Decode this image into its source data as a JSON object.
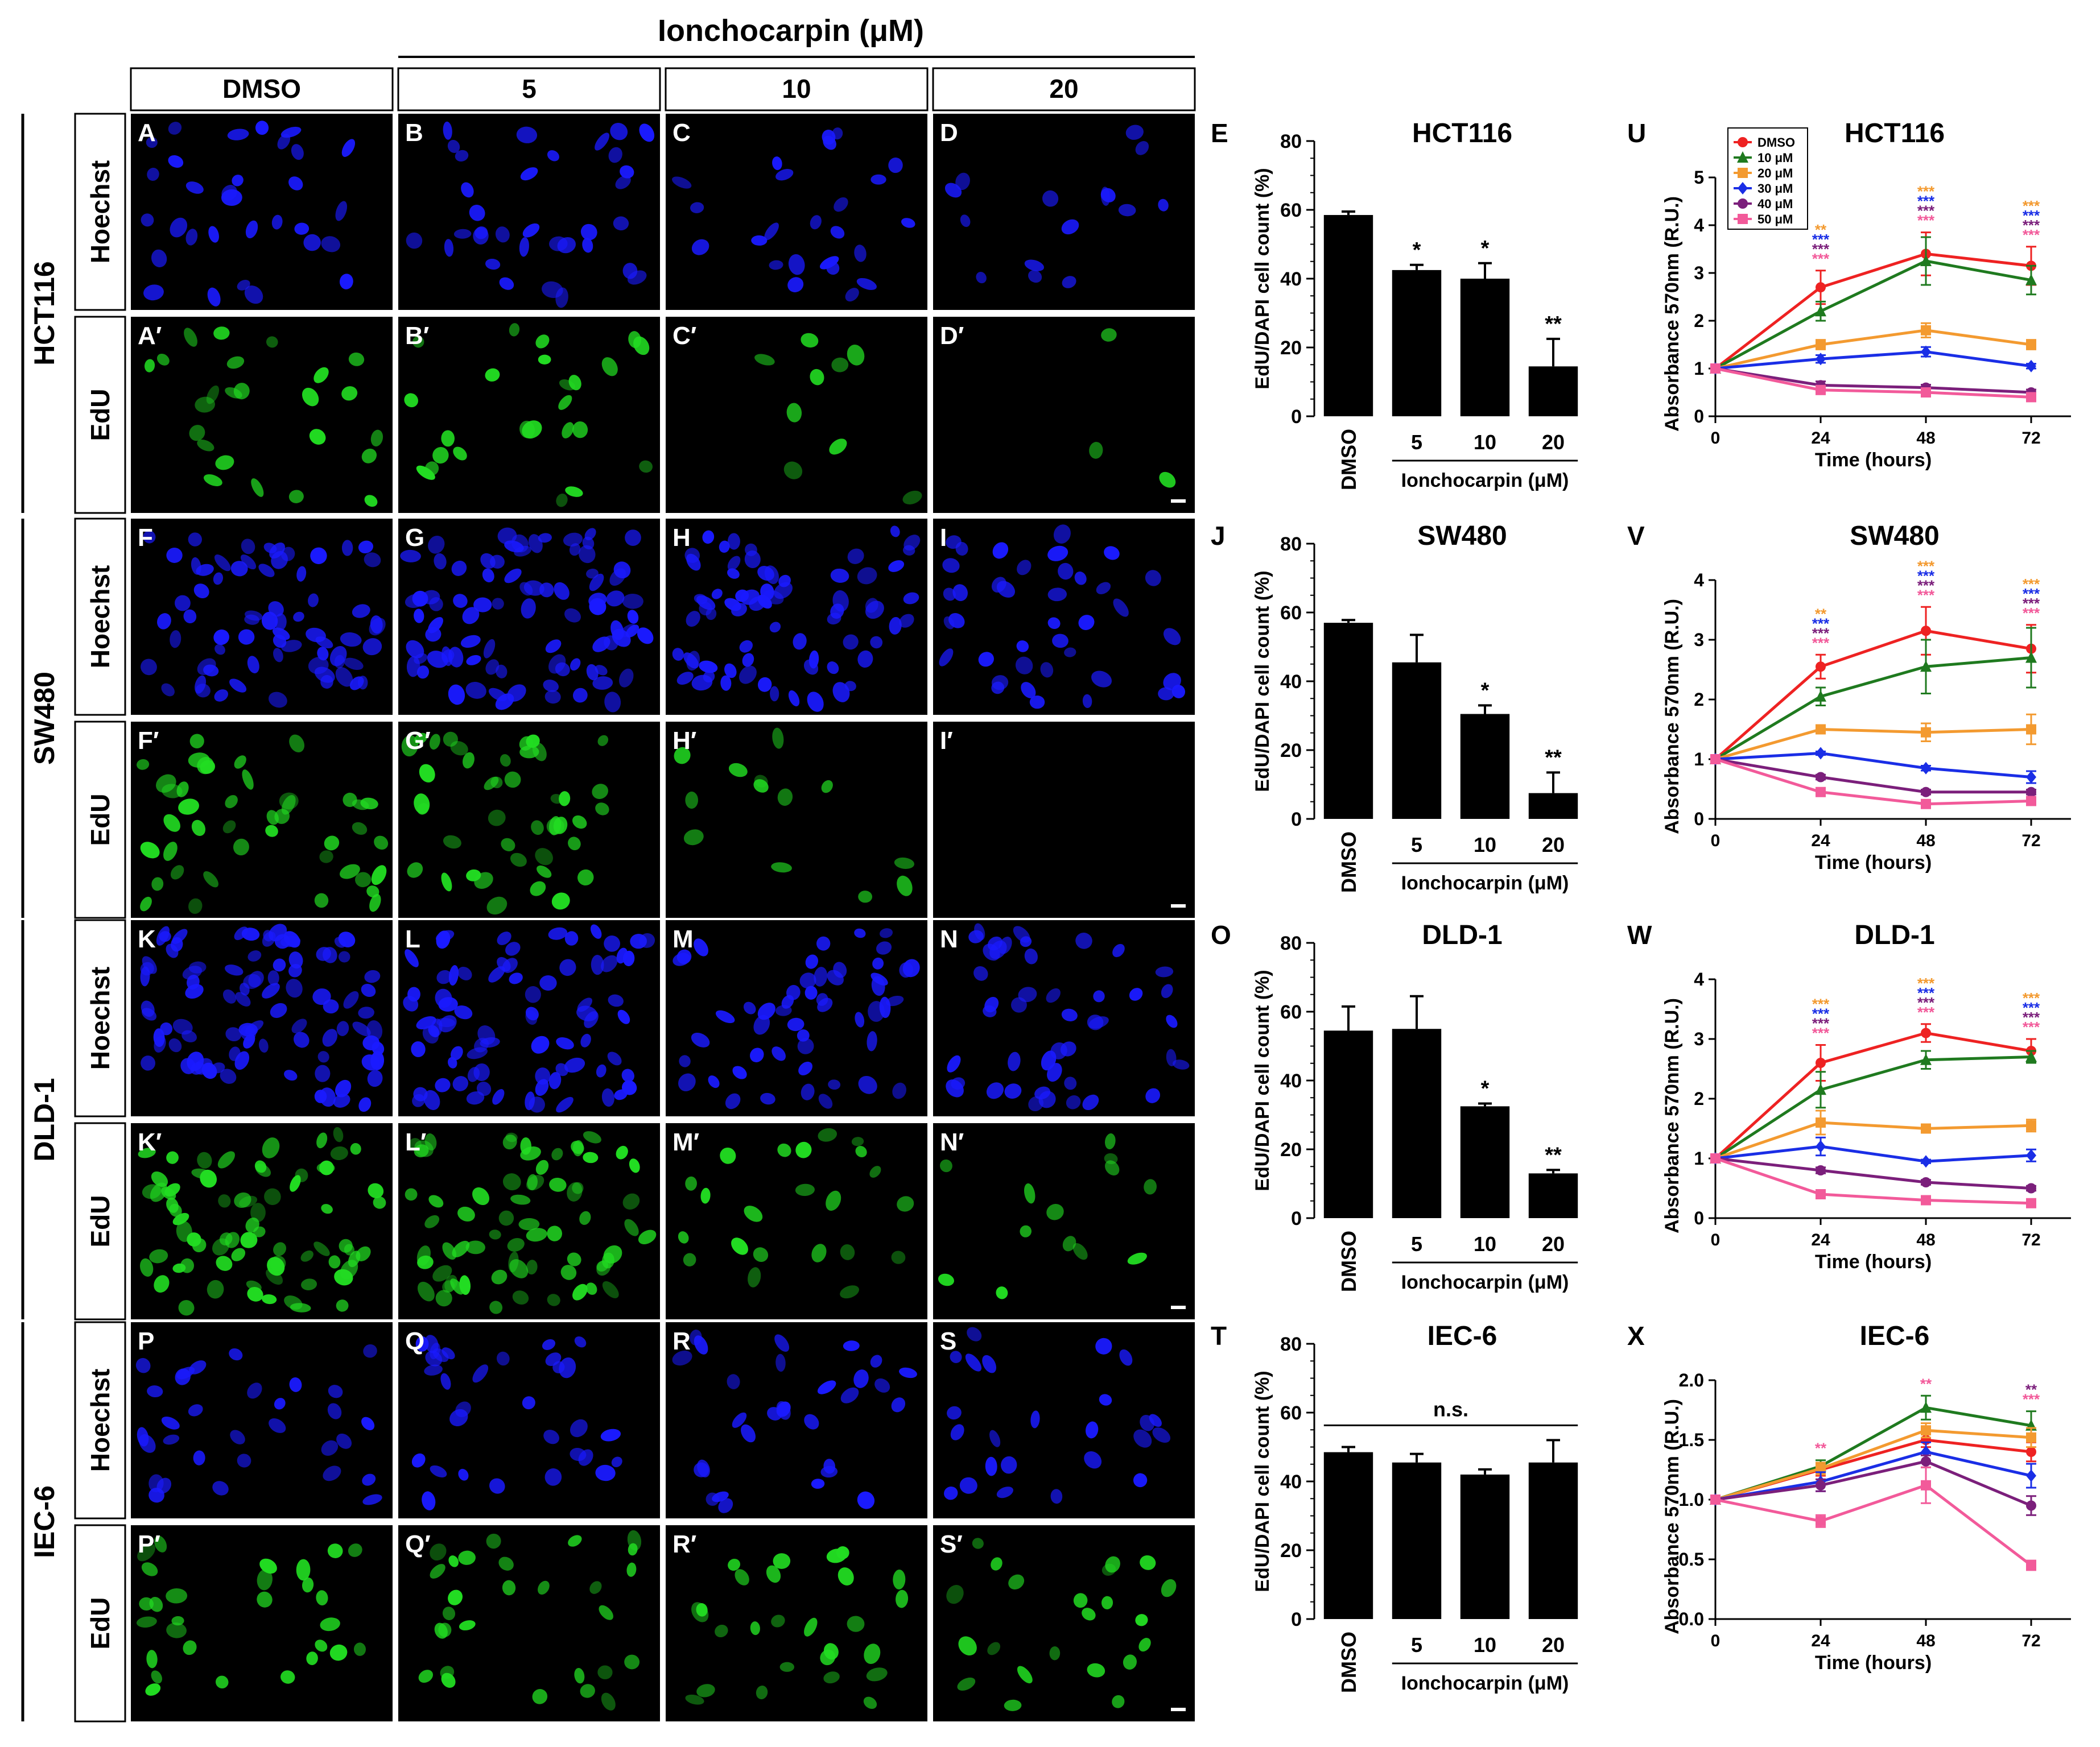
{
  "header": {
    "title": "Ionchocarpin (μM)",
    "columns": [
      "DMSO",
      "5",
      "10",
      "20"
    ]
  },
  "rows": [
    {
      "cell_line": "HCT116",
      "stains": [
        "Hoechst",
        "EdU"
      ],
      "labels": [
        [
          "A",
          "B",
          "C",
          "D"
        ],
        [
          "A′",
          "B′",
          "C′",
          "D′"
        ]
      ]
    },
    {
      "cell_line": "SW480",
      "stains": [
        "Hoechst",
        "EdU"
      ],
      "labels": [
        [
          "F",
          "G",
          "H",
          "I"
        ],
        [
          "F′",
          "G′",
          "H′",
          "I′"
        ]
      ]
    },
    {
      "cell_line": "DLD-1",
      "stains": [
        "Hoechst",
        "EdU"
      ],
      "labels": [
        [
          "K",
          "L",
          "M",
          "N"
        ],
        [
          "K′",
          "L′",
          "M′",
          "N′"
        ]
      ]
    },
    {
      "cell_line": "IEC-6",
      "stains": [
        "Hoechst",
        "EdU"
      ],
      "labels": [
        [
          "P",
          "Q",
          "R",
          "S"
        ],
        [
          "P′",
          "Q′",
          "R′",
          "S′"
        ]
      ]
    }
  ],
  "micrograph": {
    "hoechst_color": "#1a1aff",
    "edu_color": "#22dd22",
    "nuclei_density": {
      "hoechst": [
        [
          0.28,
          0.3,
          0.22,
          0.14
        ],
        [
          0.6,
          0.75,
          0.62,
          0.35
        ],
        [
          0.8,
          0.7,
          0.45,
          0.4
        ],
        [
          0.28,
          0.28,
          0.26,
          0.22
        ]
      ],
      "edu": [
        [
          0.22,
          0.22,
          0.08,
          0.03
        ],
        [
          0.38,
          0.38,
          0.12,
          0.0
        ],
        [
          0.65,
          0.6,
          0.2,
          0.12
        ],
        [
          0.25,
          0.25,
          0.24,
          0.2
        ]
      ]
    }
  },
  "chart_data": [
    {
      "type": "bar",
      "panel": "E",
      "title": "HCT116",
      "ylabel": "EdU/DAPI cell count (%)",
      "xlabel": "Ionchocarpin (μM)",
      "categories": [
        "DMSO",
        "5",
        "10",
        "20"
      ],
      "values": [
        58.5,
        42.5,
        40,
        14.5
      ],
      "errors": [
        1,
        1.5,
        4.5,
        8
      ],
      "significance": [
        "",
        "*",
        "*",
        "**"
      ],
      "ylim": [
        0,
        80
      ],
      "yticks": [
        0,
        20,
        40,
        60,
        80
      ],
      "bar_color": "#000000"
    },
    {
      "type": "bar",
      "panel": "J",
      "title": "SW480",
      "ylabel": "EdU/DAPI cell count (%)",
      "xlabel": "Ionchocarpin (μM)",
      "categories": [
        "DMSO",
        "5",
        "10",
        "20"
      ],
      "values": [
        57,
        45.5,
        30.5,
        7.5
      ],
      "errors": [
        0.8,
        8,
        2.5,
        6
      ],
      "significance": [
        "",
        "",
        "*",
        "**"
      ],
      "ylim": [
        0,
        80
      ],
      "yticks": [
        0,
        20,
        40,
        60,
        80
      ],
      "bar_color": "#000000"
    },
    {
      "type": "bar",
      "panel": "O",
      "title": "DLD-1",
      "ylabel": "EdU/DAPI cell count (%)",
      "xlabel": "Ionchocarpin (μM)",
      "categories": [
        "DMSO",
        "5",
        "10",
        "20"
      ],
      "values": [
        54.5,
        55,
        32.5,
        13
      ],
      "errors": [
        7,
        9.5,
        0.8,
        1
      ],
      "significance": [
        "",
        "",
        "*",
        "**"
      ],
      "ylim": [
        0,
        80
      ],
      "yticks": [
        0,
        20,
        40,
        60,
        80
      ],
      "bar_color": "#000000"
    },
    {
      "type": "bar",
      "panel": "T",
      "title": "IEC-6",
      "ylabel": "EdU/DAPI cell count (%)",
      "xlabel": "Ionchocarpin (μM)",
      "categories": [
        "DMSO",
        "5",
        "10",
        "20"
      ],
      "values": [
        48.5,
        45.5,
        42,
        45.5
      ],
      "errors": [
        1.5,
        2.5,
        1.5,
        6.5
      ],
      "significance": [
        "",
        "",
        "",
        ""
      ],
      "annotation": "n.s.",
      "ylim": [
        0,
        80
      ],
      "yticks": [
        0,
        20,
        40,
        60,
        80
      ],
      "bar_color": "#000000"
    },
    {
      "type": "line",
      "panel": "U",
      "title": "HCT116",
      "ylabel": "Absorbance 570nm (R.U.)",
      "xlabel": "Time (hours)",
      "x": [
        0,
        24,
        48,
        72
      ],
      "xticks": [
        0,
        24,
        48,
        72
      ],
      "ylim": [
        0,
        5
      ],
      "yticks": [
        0,
        1,
        2,
        3,
        4,
        5
      ],
      "ytick_labels": [
        "0",
        "1",
        "2",
        "3",
        "4",
        "5"
      ],
      "legend": "top-left",
      "series": [
        {
          "name": "DMSO",
          "color": "#ee2222",
          "marker": "circle",
          "values": [
            1,
            2.7,
            3.4,
            3.15
          ],
          "errors": [
            0,
            0.35,
            0.45,
            0.4
          ]
        },
        {
          "name": "10 μM",
          "color": "#1f7a1f",
          "marker": "triangle",
          "values": [
            1,
            2.2,
            3.25,
            2.85
          ],
          "errors": [
            0,
            0.2,
            0.5,
            0.3
          ]
        },
        {
          "name": "20 μM",
          "color": "#f39a30",
          "marker": "square",
          "values": [
            1,
            1.5,
            1.8,
            1.5
          ],
          "errors": [
            0,
            0.1,
            0.15,
            0.1
          ]
        },
        {
          "name": "30 μM",
          "color": "#1a2ee6",
          "marker": "diamond",
          "values": [
            1,
            1.2,
            1.35,
            1.05
          ],
          "errors": [
            0,
            0.08,
            0.1,
            0.05
          ]
        },
        {
          "name": "40 μM",
          "color": "#7b1f7b",
          "marker": "circle",
          "values": [
            1,
            0.65,
            0.6,
            0.5
          ],
          "errors": [
            0,
            0.08,
            0.06,
            0.06
          ]
        },
        {
          "name": "50 μM",
          "color": "#f25a9a",
          "marker": "square",
          "values": [
            1,
            0.55,
            0.5,
            0.4
          ],
          "errors": [
            0,
            0.06,
            0.05,
            0.05
          ]
        }
      ],
      "significance": [
        {
          "x": 24,
          "marks": [
            {
              "text": "**",
              "color": "#f39a30"
            },
            {
              "text": "***",
              "color": "#1a2ee6"
            },
            {
              "text": "***",
              "color": "#7b1f7b"
            },
            {
              "text": "***",
              "color": "#f25a9a"
            }
          ]
        },
        {
          "x": 48,
          "marks": [
            {
              "text": "***",
              "color": "#f39a30"
            },
            {
              "text": "***",
              "color": "#1a2ee6"
            },
            {
              "text": "***",
              "color": "#7b1f7b"
            },
            {
              "text": "***",
              "color": "#f25a9a"
            }
          ]
        },
        {
          "x": 72,
          "marks": [
            {
              "text": "***",
              "color": "#f39a30"
            },
            {
              "text": "***",
              "color": "#1a2ee6"
            },
            {
              "text": "***",
              "color": "#7b1f7b"
            },
            {
              "text": "***",
              "color": "#f25a9a"
            }
          ]
        }
      ]
    },
    {
      "type": "line",
      "panel": "V",
      "title": "SW480",
      "ylabel": "Absorbance 570nm (R.U.)",
      "xlabel": "Time (hours)",
      "x": [
        0,
        24,
        48,
        72
      ],
      "xticks": [
        0,
        24,
        48,
        72
      ],
      "ylim": [
        0,
        4
      ],
      "yticks": [
        0,
        1,
        2,
        3,
        4
      ],
      "ytick_labels": [
        "0",
        "1",
        "2",
        "3",
        "4"
      ],
      "series": [
        {
          "name": "DMSO",
          "color": "#ee2222",
          "marker": "circle",
          "values": [
            1,
            2.55,
            3.15,
            2.85
          ],
          "errors": [
            0,
            0.2,
            0.4,
            0.4
          ]
        },
        {
          "name": "10 μM",
          "color": "#1f7a1f",
          "marker": "triangle",
          "values": [
            1,
            2.05,
            2.55,
            2.7
          ],
          "errors": [
            0,
            0.15,
            0.45,
            0.5
          ]
        },
        {
          "name": "20 μM",
          "color": "#f39a30",
          "marker": "square",
          "values": [
            1,
            1.5,
            1.45,
            1.5
          ],
          "errors": [
            0,
            0.05,
            0.15,
            0.25
          ]
        },
        {
          "name": "30 μM",
          "color": "#1a2ee6",
          "marker": "diamond",
          "values": [
            1,
            1.1,
            0.85,
            0.7
          ],
          "errors": [
            0,
            0.03,
            0.04,
            0.1
          ]
        },
        {
          "name": "40 μM",
          "color": "#7b1f7b",
          "marker": "circle",
          "values": [
            1,
            0.7,
            0.45,
            0.45
          ],
          "errors": [
            0,
            0.04,
            0.04,
            0.04
          ]
        },
        {
          "name": "50 μM",
          "color": "#f25a9a",
          "marker": "square",
          "values": [
            1,
            0.45,
            0.25,
            0.3
          ],
          "errors": [
            0,
            0.04,
            0.03,
            0.04
          ]
        }
      ],
      "significance": [
        {
          "x": 24,
          "marks": [
            {
              "text": "**",
              "color": "#f39a30"
            },
            {
              "text": "***",
              "color": "#1a2ee6"
            },
            {
              "text": "***",
              "color": "#7b1f7b"
            },
            {
              "text": "***",
              "color": "#f25a9a"
            }
          ]
        },
        {
          "x": 48,
          "marks": [
            {
              "text": "***",
              "color": "#f39a30"
            },
            {
              "text": "***",
              "color": "#1a2ee6"
            },
            {
              "text": "***",
              "color": "#7b1f7b"
            },
            {
              "text": "***",
              "color": "#f25a9a"
            }
          ]
        },
        {
          "x": 72,
          "marks": [
            {
              "text": "***",
              "color": "#f39a30"
            },
            {
              "text": "***",
              "color": "#1a2ee6"
            },
            {
              "text": "***",
              "color": "#7b1f7b"
            },
            {
              "text": "***",
              "color": "#f25a9a"
            }
          ]
        }
      ]
    },
    {
      "type": "line",
      "panel": "W",
      "title": "DLD-1",
      "ylabel": "Absorbance 570nm (R.U.)",
      "xlabel": "Time (hours)",
      "x": [
        0,
        24,
        48,
        72
      ],
      "xticks": [
        0,
        24,
        48,
        72
      ],
      "ylim": [
        0,
        4
      ],
      "yticks": [
        0,
        1,
        2,
        3,
        4
      ],
      "ytick_labels": [
        "0",
        "1",
        "2",
        "3",
        "4"
      ],
      "series": [
        {
          "name": "DMSO",
          "color": "#ee2222",
          "marker": "circle",
          "values": [
            1,
            2.6,
            3.1,
            2.8
          ],
          "errors": [
            0,
            0.3,
            0.15,
            0.2
          ]
        },
        {
          "name": "10 μM",
          "color": "#1f7a1f",
          "marker": "triangle",
          "values": [
            1,
            2.15,
            2.65,
            2.7
          ],
          "errors": [
            0,
            0.3,
            0.15,
            0.1
          ]
        },
        {
          "name": "20 μM",
          "color": "#f39a30",
          "marker": "square",
          "values": [
            1,
            1.6,
            1.5,
            1.55
          ],
          "errors": [
            0,
            0.2,
            0.05,
            0.1
          ]
        },
        {
          "name": "30 μM",
          "color": "#1a2ee6",
          "marker": "diamond",
          "values": [
            1,
            1.2,
            0.95,
            1.05
          ],
          "errors": [
            0,
            0.15,
            0.03,
            0.1
          ]
        },
        {
          "name": "40 μM",
          "color": "#7b1f7b",
          "marker": "circle",
          "values": [
            1,
            0.8,
            0.6,
            0.5
          ],
          "errors": [
            0,
            0.05,
            0.04,
            0.04
          ]
        },
        {
          "name": "50 μM",
          "color": "#f25a9a",
          "marker": "square",
          "values": [
            1,
            0.4,
            0.3,
            0.25
          ],
          "errors": [
            0,
            0.04,
            0.03,
            0.03
          ]
        }
      ],
      "significance": [
        {
          "x": 24,
          "marks": [
            {
              "text": "***",
              "color": "#f39a30"
            },
            {
              "text": "***",
              "color": "#1a2ee6"
            },
            {
              "text": "***",
              "color": "#7b1f7b"
            },
            {
              "text": "***",
              "color": "#f25a9a"
            }
          ]
        },
        {
          "x": 48,
          "marks": [
            {
              "text": "***",
              "color": "#f39a30"
            },
            {
              "text": "***",
              "color": "#1a2ee6"
            },
            {
              "text": "***",
              "color": "#7b1f7b"
            },
            {
              "text": "***",
              "color": "#f25a9a"
            }
          ]
        },
        {
          "x": 72,
          "marks": [
            {
              "text": "***",
              "color": "#f39a30"
            },
            {
              "text": "***",
              "color": "#1a2ee6"
            },
            {
              "text": "***",
              "color": "#7b1f7b"
            },
            {
              "text": "***",
              "color": "#f25a9a"
            }
          ]
        }
      ]
    },
    {
      "type": "line",
      "panel": "X",
      "title": "IEC-6",
      "ylabel": "Absorbance 570nm (R.U.)",
      "xlabel": "Time (hours)",
      "x": [
        0,
        24,
        48,
        72
      ],
      "xticks": [
        0,
        24,
        48,
        72
      ],
      "ylim": [
        0,
        2
      ],
      "yticks": [
        0,
        0.5,
        1,
        1.5,
        2
      ],
      "ytick_labels": [
        "0.0",
        "0.5",
        "1.0",
        "1.5",
        "2.0"
      ],
      "series": [
        {
          "name": "DMSO",
          "color": "#ee2222",
          "marker": "circle",
          "values": [
            1,
            1.25,
            1.5,
            1.4
          ],
          "errors": [
            0,
            0.05,
            0.06,
            0.08
          ]
        },
        {
          "name": "10 μM",
          "color": "#1f7a1f",
          "marker": "triangle",
          "values": [
            1,
            1.28,
            1.77,
            1.62
          ],
          "errors": [
            0,
            0.05,
            0.1,
            0.12
          ]
        },
        {
          "name": "20 μM",
          "color": "#f39a30",
          "marker": "square",
          "values": [
            1,
            1.26,
            1.58,
            1.52
          ],
          "errors": [
            0,
            0.05,
            0.06,
            0.08
          ]
        },
        {
          "name": "30 μM",
          "color": "#1a2ee6",
          "marker": "diamond",
          "values": [
            1,
            1.15,
            1.4,
            1.2
          ],
          "errors": [
            0,
            0.08,
            0.08,
            0.1
          ]
        },
        {
          "name": "40 μM",
          "color": "#7b1f7b",
          "marker": "circle",
          "values": [
            1,
            1.12,
            1.32,
            0.95
          ],
          "errors": [
            0,
            0.05,
            0.05,
            0.08
          ]
        },
        {
          "name": "50 μM",
          "color": "#f25a9a",
          "marker": "square",
          "values": [
            1,
            0.82,
            1.12,
            0.45
          ],
          "errors": [
            0,
            0.05,
            0.15,
            0.04
          ]
        }
      ],
      "significance": [
        {
          "x": 24,
          "marks": [
            {
              "text": "**",
              "color": "#f25a9a"
            }
          ]
        },
        {
          "x": 48,
          "marks": [
            {
              "text": "**",
              "color": "#f25a9a"
            }
          ]
        },
        {
          "x": 72,
          "marks": [
            {
              "text": "**",
              "color": "#7b1f7b"
            },
            {
              "text": "***",
              "color": "#f25a9a"
            }
          ]
        }
      ]
    }
  ]
}
